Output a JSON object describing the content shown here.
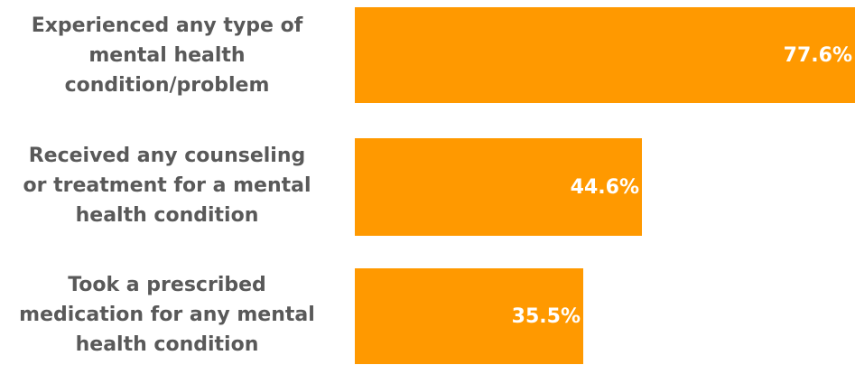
{
  "chart_data": {
    "type": "bar",
    "orientation": "horizontal",
    "categories": [
      "Experienced any type of\nmental health\ncondition/problem",
      "Received any counseling\nor treatment for a mental\nhealth condition",
      "Took a prescribed\nmedication for any mental\nhealth condition"
    ],
    "values": [
      77.6,
      44.6,
      35.5
    ],
    "value_labels": [
      "77.6%",
      "44.6%",
      "35.5%"
    ],
    "bar_color": "#FF9900",
    "title": "",
    "xlabel": "",
    "ylabel": "",
    "xlim": [
      0,
      77.6
    ],
    "grid": false,
    "legend": "none"
  }
}
